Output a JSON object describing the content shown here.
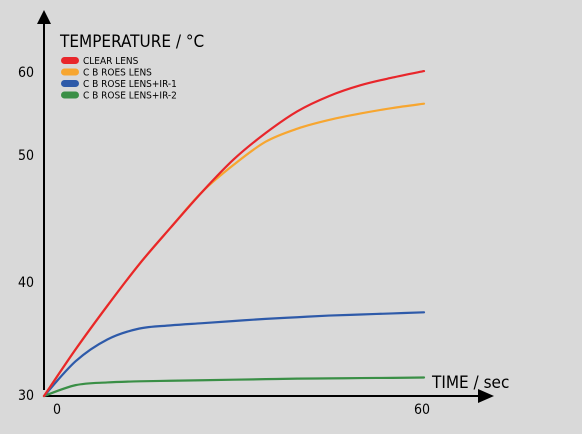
{
  "chart_data": {
    "type": "line",
    "title": "",
    "ylabel": "TEMPERATURE / °C",
    "xlabel": "TIME / sec",
    "xlim": [
      0,
      60
    ],
    "ylim": [
      30,
      60
    ],
    "x_ticks": [
      "0",
      "60"
    ],
    "y_ticks": [
      "60",
      "50",
      "40",
      "30"
    ],
    "legend_position": "top-left",
    "grid": false,
    "series": [
      {
        "name": "CLEAR LENS",
        "color": "#e8262b",
        "x": [
          0,
          5,
          10,
          15,
          20,
          25,
          30,
          35,
          40,
          45,
          50,
          55,
          60
        ],
        "y": [
          30,
          34.3,
          38.3,
          42.1,
          45.5,
          48.8,
          51.8,
          54.2,
          56.2,
          57.6,
          58.6,
          59.3,
          59.9
        ]
      },
      {
        "name": "C B ROES LENS",
        "color": "#f7a630",
        "x": [
          0,
          5,
          10,
          15,
          20,
          25,
          30,
          35,
          40,
          45,
          50,
          55,
          60
        ],
        "y": [
          30,
          34.3,
          38.3,
          42.1,
          45.5,
          48.8,
          51.3,
          53.4,
          54.6,
          55.4,
          56.0,
          56.5,
          56.9
        ]
      },
      {
        "name": "C B ROSE LENS+IR-1",
        "color": "#2e5aa9",
        "x": [
          0,
          5,
          10,
          15,
          20,
          25,
          30,
          35,
          40,
          45,
          50,
          55,
          60
        ],
        "y": [
          30,
          33.2,
          35.2,
          36.2,
          36.5,
          36.7,
          36.9,
          37.1,
          37.25,
          37.4,
          37.5,
          37.6,
          37.7
        ]
      },
      {
        "name": "C B ROSE LENS+IR-2",
        "color": "#3a8f46",
        "x": [
          0,
          5,
          10,
          15,
          20,
          25,
          30,
          35,
          40,
          45,
          50,
          55,
          60
        ],
        "y": [
          30,
          31.0,
          31.25,
          31.35,
          31.4,
          31.45,
          31.5,
          31.55,
          31.6,
          31.62,
          31.65,
          31.67,
          31.7
        ]
      }
    ]
  }
}
